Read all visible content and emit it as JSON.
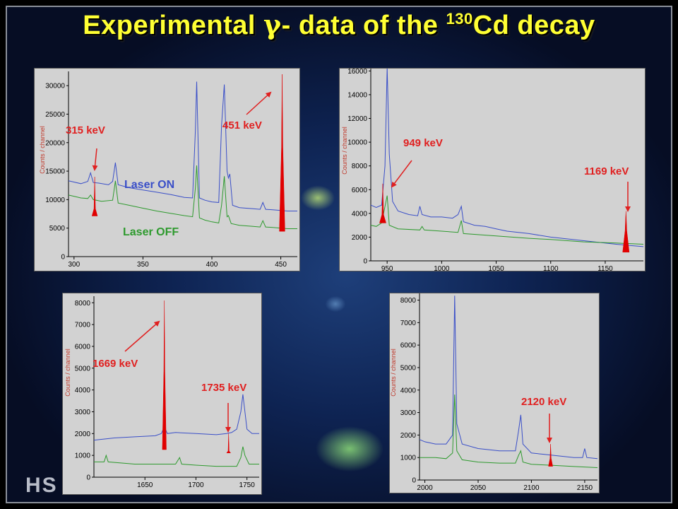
{
  "title": {
    "prefix": "Experimental ",
    "gamma": "γ",
    "middle": "- data of the ",
    "mass": "130",
    "element_suffix": "Cd decay"
  },
  "watermark": "HS",
  "colors": {
    "laser_on": "#3a4fc8",
    "laser_off": "#2e9a2e",
    "peak_fill": "#e00000",
    "annotation": "#e02020",
    "title": "#ffff33"
  },
  "chart_data": [
    {
      "type": "line",
      "ylabel": "Counts / channel",
      "xlim": [
        296,
        462
      ],
      "ylim": [
        0,
        32500
      ],
      "xticks": [
        300,
        350,
        400,
        450
      ],
      "yticks": [
        0,
        5000,
        10000,
        15000,
        20000,
        25000,
        30000
      ],
      "legend": [
        "Laser ON",
        "Laser OFF"
      ],
      "series": [
        {
          "name": "Laser ON",
          "points": [
            [
              296,
              13300
            ],
            [
              305,
              12800
            ],
            [
              310,
              13200
            ],
            [
              312,
              14700
            ],
            [
              314,
              13000
            ],
            [
              318,
              12900
            ],
            [
              325,
              12600
            ],
            [
              328,
              13200
            ],
            [
              330,
              16500
            ],
            [
              332,
              12600
            ],
            [
              340,
              12100
            ],
            [
              350,
              11700
            ],
            [
              360,
              11300
            ],
            [
              370,
              10900
            ],
            [
              380,
              10400
            ],
            [
              386,
              10300
            ],
            [
              388,
              22000
            ],
            [
              389,
              30700
            ],
            [
              391,
              10300
            ],
            [
              395,
              9900
            ],
            [
              400,
              9600
            ],
            [
              405,
              9500
            ],
            [
              407,
              23000
            ],
            [
              409,
              30200
            ],
            [
              411,
              15000
            ],
            [
              412,
              13800
            ],
            [
              413,
              14500
            ],
            [
              415,
              9000
            ],
            [
              420,
              8600
            ],
            [
              430,
              8400
            ],
            [
              435,
              8300
            ],
            [
              437,
              9500
            ],
            [
              439,
              8300
            ],
            [
              445,
              8200
            ],
            [
              450,
              8100
            ],
            [
              455,
              8000
            ],
            [
              462,
              8000
            ]
          ]
        },
        {
          "name": "Laser OFF",
          "points": [
            [
              296,
              10800
            ],
            [
              305,
              10300
            ],
            [
              310,
              10200
            ],
            [
              312,
              10800
            ],
            [
              314,
              10000
            ],
            [
              320,
              9700
            ],
            [
              328,
              9900
            ],
            [
              330,
              13300
            ],
            [
              332,
              9400
            ],
            [
              340,
              9000
            ],
            [
              350,
              8500
            ],
            [
              360,
              8000
            ],
            [
              370,
              7600
            ],
            [
              380,
              7200
            ],
            [
              386,
              7000
            ],
            [
              388,
              12000
            ],
            [
              389,
              16000
            ],
            [
              391,
              6800
            ],
            [
              395,
              6400
            ],
            [
              400,
              6100
            ],
            [
              405,
              5900
            ],
            [
              407,
              9000
            ],
            [
              409,
              14100
            ],
            [
              411,
              7000
            ],
            [
              412,
              7200
            ],
            [
              414,
              5800
            ],
            [
              420,
              5500
            ],
            [
              430,
              5300
            ],
            [
              435,
              5200
            ],
            [
              437,
              6300
            ],
            [
              439,
              5200
            ],
            [
              445,
              5100
            ],
            [
              450,
              5000
            ],
            [
              455,
              4900
            ],
            [
              462,
              4900
            ]
          ]
        }
      ],
      "peaks": [
        {
          "label": "315 keV",
          "x": 315,
          "height": 14000
        },
        {
          "label": "451 keV",
          "x": 451,
          "height": 32000
        }
      ]
    },
    {
      "type": "line",
      "ylabel": "Counts / channel",
      "xlim": [
        935,
        1185
      ],
      "ylim": [
        0,
        16200
      ],
      "xticks": [
        950,
        1000,
        1050,
        1100,
        1150
      ],
      "yticks": [
        0,
        2000,
        4000,
        6000,
        8000,
        10000,
        12000,
        14000,
        16000
      ],
      "series": [
        {
          "name": "Laser ON",
          "points": [
            [
              935,
              4700
            ],
            [
              940,
              4500
            ],
            [
              945,
              4700
            ],
            [
              948,
              8000
            ],
            [
              950,
              16300
            ],
            [
              952,
              9000
            ],
            [
              955,
              5000
            ],
            [
              960,
              4200
            ],
            [
              970,
              3900
            ],
            [
              978,
              3800
            ],
            [
              980,
              4600
            ],
            [
              982,
              3900
            ],
            [
              990,
              3700
            ],
            [
              1000,
              3700
            ],
            [
              1010,
              3600
            ],
            [
              1015,
              3900
            ],
            [
              1018,
              4600
            ],
            [
              1020,
              3300
            ],
            [
              1030,
              3000
            ],
            [
              1040,
              2900
            ],
            [
              1050,
              2700
            ],
            [
              1060,
              2500
            ],
            [
              1080,
              2300
            ],
            [
              1100,
              2000
            ],
            [
              1120,
              1800
            ],
            [
              1140,
              1600
            ],
            [
              1160,
              1400
            ],
            [
              1185,
              1200
            ]
          ]
        },
        {
          "name": "Laser OFF",
          "points": [
            [
              935,
              3000
            ],
            [
              940,
              2900
            ],
            [
              945,
              3200
            ],
            [
              950,
              5500
            ],
            [
              952,
              3000
            ],
            [
              960,
              2700
            ],
            [
              980,
              2600
            ],
            [
              982,
              2900
            ],
            [
              984,
              2600
            ],
            [
              1000,
              2500
            ],
            [
              1015,
              2400
            ],
            [
              1018,
              3400
            ],
            [
              1020,
              2300
            ],
            [
              1050,
              2100
            ],
            [
              1080,
              1900
            ],
            [
              1100,
              1800
            ],
            [
              1130,
              1600
            ],
            [
              1160,
              1500
            ],
            [
              1185,
              1400
            ]
          ]
        }
      ],
      "peaks": [
        {
          "label": "949 keV",
          "x": 946,
          "height": 6500
        },
        {
          "label": "1169 keV",
          "x": 1169,
          "height": 4200
        }
      ]
    },
    {
      "type": "line",
      "ylabel": "Counts / channel",
      "xlim": [
        1600,
        1762
      ],
      "ylim": [
        0,
        8300
      ],
      "xticks": [
        1650,
        1700,
        1750
      ],
      "yticks": [
        0,
        1000,
        2000,
        3000,
        4000,
        5000,
        6000,
        7000,
        8000
      ],
      "series": [
        {
          "name": "Laser ON",
          "points": [
            [
              1600,
              1700
            ],
            [
              1620,
              1800
            ],
            [
              1640,
              1850
            ],
            [
              1660,
              1900
            ],
            [
              1666,
              2000
            ],
            [
              1669,
              2300
            ],
            [
              1672,
              2000
            ],
            [
              1680,
              2050
            ],
            [
              1700,
              2000
            ],
            [
              1720,
              1950
            ],
            [
              1730,
              2000
            ],
            [
              1735,
              2050
            ],
            [
              1740,
              2200
            ],
            [
              1744,
              3000
            ],
            [
              1746,
              3800
            ],
            [
              1748,
              3000
            ],
            [
              1750,
              2200
            ],
            [
              1755,
              2000
            ],
            [
              1762,
              2000
            ]
          ]
        },
        {
          "name": "Laser OFF",
          "points": [
            [
              1600,
              700
            ],
            [
              1610,
              700
            ],
            [
              1612,
              1000
            ],
            [
              1614,
              700
            ],
            [
              1640,
              600
            ],
            [
              1660,
              600
            ],
            [
              1680,
              600
            ],
            [
              1684,
              900
            ],
            [
              1686,
              600
            ],
            [
              1700,
              550
            ],
            [
              1720,
              500
            ],
            [
              1740,
              500
            ],
            [
              1744,
              900
            ],
            [
              1746,
              1400
            ],
            [
              1748,
              1000
            ],
            [
              1752,
              600
            ],
            [
              1762,
              600
            ]
          ]
        }
      ],
      "peaks": [
        {
          "label": "1669 keV",
          "x": 1669,
          "height": 8100
        },
        {
          "label": "1735 keV",
          "x": 1732,
          "height": 2000
        }
      ]
    },
    {
      "type": "line",
      "ylabel": "Counts / channel",
      "xlim": [
        1995,
        2162
      ],
      "ylim": [
        0,
        8300
      ],
      "xticks": [
        2000,
        2050,
        2100,
        2150
      ],
      "yticks": [
        0,
        1000,
        2000,
        3000,
        4000,
        5000,
        6000,
        7000,
        8000
      ],
      "series": [
        {
          "name": "Laser ON",
          "points": [
            [
              1995,
              1800
            ],
            [
              2000,
              1700
            ],
            [
              2010,
              1600
            ],
            [
              2020,
              1600
            ],
            [
              2026,
              2000
            ],
            [
              2028,
              8200
            ],
            [
              2030,
              2500
            ],
            [
              2035,
              1600
            ],
            [
              2050,
              1400
            ],
            [
              2070,
              1300
            ],
            [
              2085,
              1300
            ],
            [
              2088,
              2200
            ],
            [
              2090,
              2900
            ],
            [
              2092,
              1600
            ],
            [
              2100,
              1200
            ],
            [
              2110,
              1150
            ],
            [
              2120,
              1100
            ],
            [
              2130,
              1050
            ],
            [
              2140,
              1000
            ],
            [
              2148,
              1000
            ],
            [
              2150,
              1400
            ],
            [
              2152,
              1000
            ],
            [
              2162,
              950
            ]
          ]
        },
        {
          "name": "Laser OFF",
          "points": [
            [
              1995,
              1000
            ],
            [
              2010,
              1000
            ],
            [
              2020,
              950
            ],
            [
              2026,
              1200
            ],
            [
              2028,
              3800
            ],
            [
              2030,
              1300
            ],
            [
              2035,
              900
            ],
            [
              2050,
              800
            ],
            [
              2070,
              750
            ],
            [
              2085,
              750
            ],
            [
              2088,
              1100
            ],
            [
              2090,
              1300
            ],
            [
              2092,
              800
            ],
            [
              2100,
              700
            ],
            [
              2120,
              650
            ],
            [
              2140,
              600
            ],
            [
              2162,
              550
            ]
          ]
        }
      ],
      "peaks": [
        {
          "label": "2120 keV",
          "x": 2118,
          "height": 1600
        }
      ]
    }
  ]
}
